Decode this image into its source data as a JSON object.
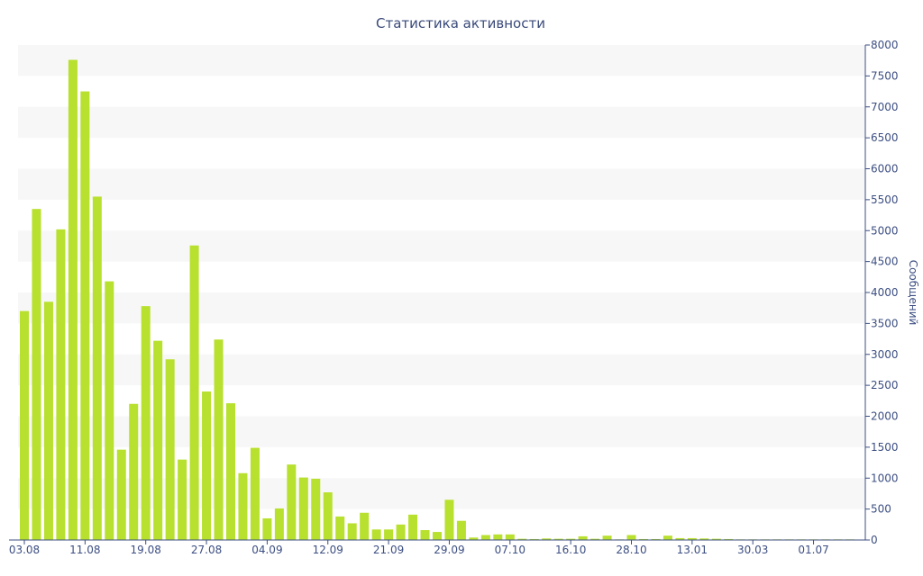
{
  "chart_data": {
    "type": "bar",
    "title": "Статистика активности",
    "ylabel": "Сообщений",
    "xlabel": "",
    "ylim": [
      0,
      8000
    ],
    "y_ticks": [
      0,
      500,
      1000,
      1500,
      2000,
      2500,
      3000,
      3500,
      4000,
      4500,
      5000,
      5500,
      6000,
      6500,
      7000,
      7500,
      8000
    ],
    "y_axis_side": "right",
    "grid": "alternating horizontal bands",
    "x_tick_labels": [
      {
        "label": "03.08",
        "index": 0
      },
      {
        "label": "11.08",
        "index": 5
      },
      {
        "label": "19.08",
        "index": 10
      },
      {
        "label": "27.08",
        "index": 15
      },
      {
        "label": "04.09",
        "index": 20
      },
      {
        "label": "12.09",
        "index": 25
      },
      {
        "label": "21.09",
        "index": 30
      },
      {
        "label": "29.09",
        "index": 35
      },
      {
        "label": "07.10",
        "index": 40
      },
      {
        "label": "16.10",
        "index": 45
      },
      {
        "label": "28.10",
        "index": 50
      },
      {
        "label": "13.01",
        "index": 55
      },
      {
        "label": "30.03",
        "index": 60
      },
      {
        "label": "01.07",
        "index": 65
      }
    ],
    "values": [
      3700,
      5350,
      3850,
      5020,
      7760,
      7250,
      5550,
      4180,
      1460,
      2200,
      3780,
      3220,
      2920,
      1300,
      4760,
      2400,
      3240,
      2210,
      1080,
      1490,
      350,
      510,
      1220,
      1010,
      990,
      770,
      380,
      270,
      440,
      170,
      170,
      250,
      410,
      160,
      130,
      650,
      310,
      40,
      80,
      90,
      90,
      20,
      15,
      25,
      20,
      20,
      60,
      20,
      70,
      10,
      80,
      15,
      15,
      70,
      30,
      30,
      25,
      20,
      15,
      10,
      10,
      10,
      10,
      10,
      10,
      10,
      10,
      10,
      10
    ],
    "colors": {
      "bar": "#b8e02e",
      "band": "#f7f7f7",
      "axis": "#3d4f82",
      "text": "#3d4f82"
    }
  }
}
